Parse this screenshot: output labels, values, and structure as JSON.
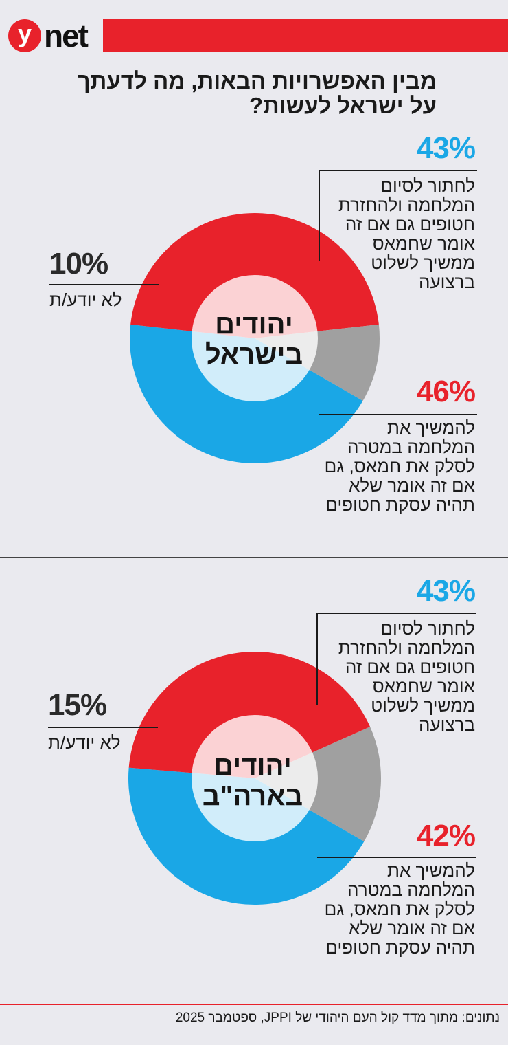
{
  "header": {
    "logo_y": "y",
    "logo_net": "net",
    "brand_color": "#e8222b"
  },
  "title": "מבין האפשרויות הבאות, מה לדעתך על ישראל לעשות?",
  "colors": {
    "blue": "#1aa7e6",
    "red": "#e8222b",
    "gray": "#a0a0a0"
  },
  "chart_data": [
    {
      "type": "pie",
      "title": "יהודים בישראל",
      "center_line1": "יהודים",
      "center_line2": "בישראל",
      "series": [
        {
          "name": "לחתור לסיום המלחמה ולהחזרת חטופים גם אם זה אומר שחמאס ממשיך לשלוט ברצועה",
          "value": 43,
          "label": "43%",
          "color": "#1aa7e6"
        },
        {
          "name": "להמשיך את המלחמה במטרה לסלק את חמאס, גם אם זה אומר שלא תהיה עסקת חטופים",
          "value": 46,
          "label": "46%",
          "color": "#e8222b"
        },
        {
          "name": "לא יודע/ת",
          "value": 10,
          "label": "10%",
          "color": "#a0a0a0"
        }
      ]
    },
    {
      "type": "pie",
      "title": "יהודים בארה\"ב",
      "center_line1": "יהודים",
      "center_line2": "בארה\"ב",
      "series": [
        {
          "name": "לחתור לסיום המלחמה ולהחזרת חטופים גם אם זה אומר שחמאס ממשיך לשלוט ברצועה",
          "value": 43,
          "label": "43%",
          "color": "#1aa7e6"
        },
        {
          "name": "להמשיך את המלחמה במטרה לסלק את חמאס, גם אם זה אומר שלא תהיה עסקת חטופים",
          "value": 42,
          "label": "42%",
          "color": "#e8222b"
        },
        {
          "name": "לא יודע/ת",
          "value": 15,
          "label": "15%",
          "color": "#a0a0a0"
        }
      ]
    }
  ],
  "footer": "נתונים: מתוך מדד קול העם היהודי של JPPI, ספטמבר 2025"
}
